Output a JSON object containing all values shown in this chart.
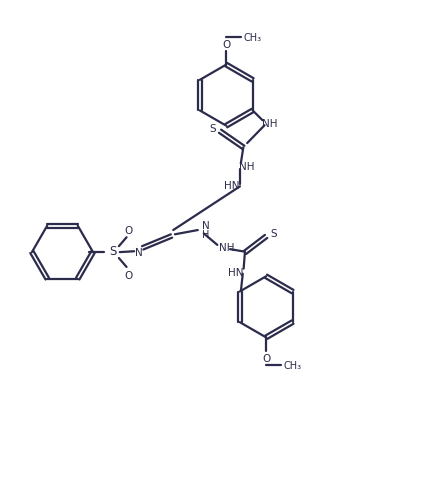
{
  "bg_color": "#ffffff",
  "line_color": "#2b2b4b",
  "line_width": 1.6,
  "figsize": [
    4.27,
    4.85
  ],
  "dpi": 100,
  "xlim": [
    0,
    10
  ],
  "ylim": [
    0,
    11.4
  ]
}
